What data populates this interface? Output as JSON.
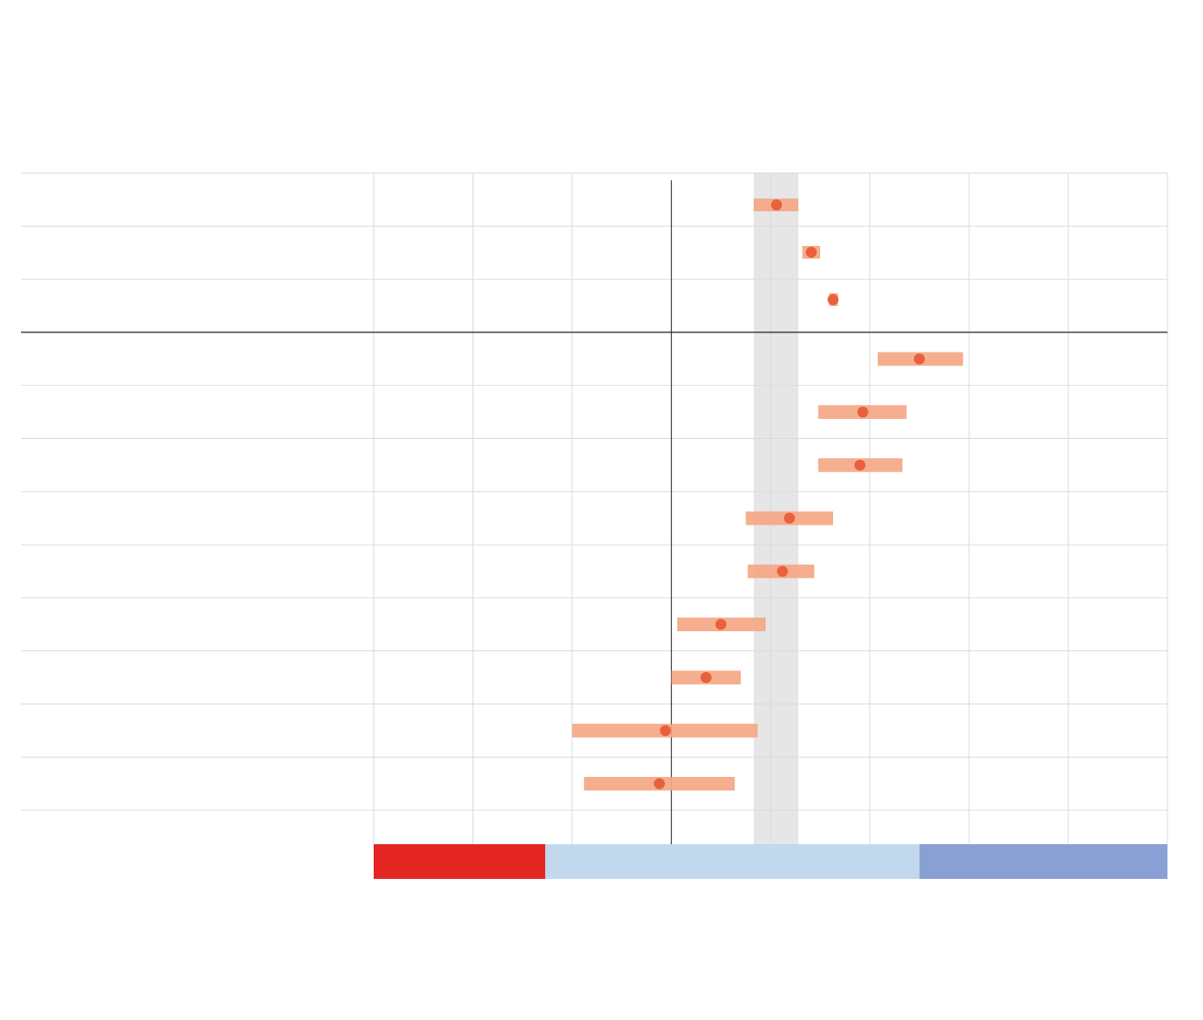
{
  "chart_data": {
    "type": "forest",
    "title": "",
    "xlabel": "",
    "ylabel": "",
    "xlim": [
      -3,
      5
    ],
    "grid": true,
    "reference_line": 0,
    "highlight_band": [
      0.83,
      1.28
    ],
    "groups": [
      {
        "rows": [
          {
            "estimate": 1.06,
            "low": 0.83,
            "high": 1.28
          },
          {
            "estimate": 1.41,
            "low": 1.32,
            "high": 1.5
          },
          {
            "estimate": 1.63,
            "low": 1.59,
            "high": 1.68
          }
        ]
      },
      {
        "rows": [
          {
            "estimate": 2.5,
            "low": 2.08,
            "high": 2.94
          },
          {
            "estimate": 1.93,
            "low": 1.48,
            "high": 2.37
          },
          {
            "estimate": 1.9,
            "low": 1.48,
            "high": 2.33
          },
          {
            "estimate": 1.19,
            "low": 0.75,
            "high": 1.63
          },
          {
            "estimate": 1.12,
            "low": 0.77,
            "high": 1.44
          },
          {
            "estimate": 0.5,
            "low": 0.06,
            "high": 0.95
          },
          {
            "estimate": 0.35,
            "low": 0.0,
            "high": 0.7
          },
          {
            "estimate": -0.06,
            "low": -1.0,
            "high": 0.87
          },
          {
            "estimate": -0.12,
            "low": -0.88,
            "high": 0.64
          }
        ]
      }
    ],
    "color_scale": [
      {
        "from": -3.0,
        "to": -1.27,
        "color": "#e32622"
      },
      {
        "from": -1.27,
        "to": 2.5,
        "color": "#c2d8ec"
      },
      {
        "from": 2.5,
        "to": 5.0,
        "color": "#88a0d3"
      }
    ],
    "colors": {
      "ci": "#f4a582",
      "point": "#e8603c",
      "band": "#e6e6e6",
      "grid": "#d3dee8",
      "axis": "#222222"
    }
  }
}
